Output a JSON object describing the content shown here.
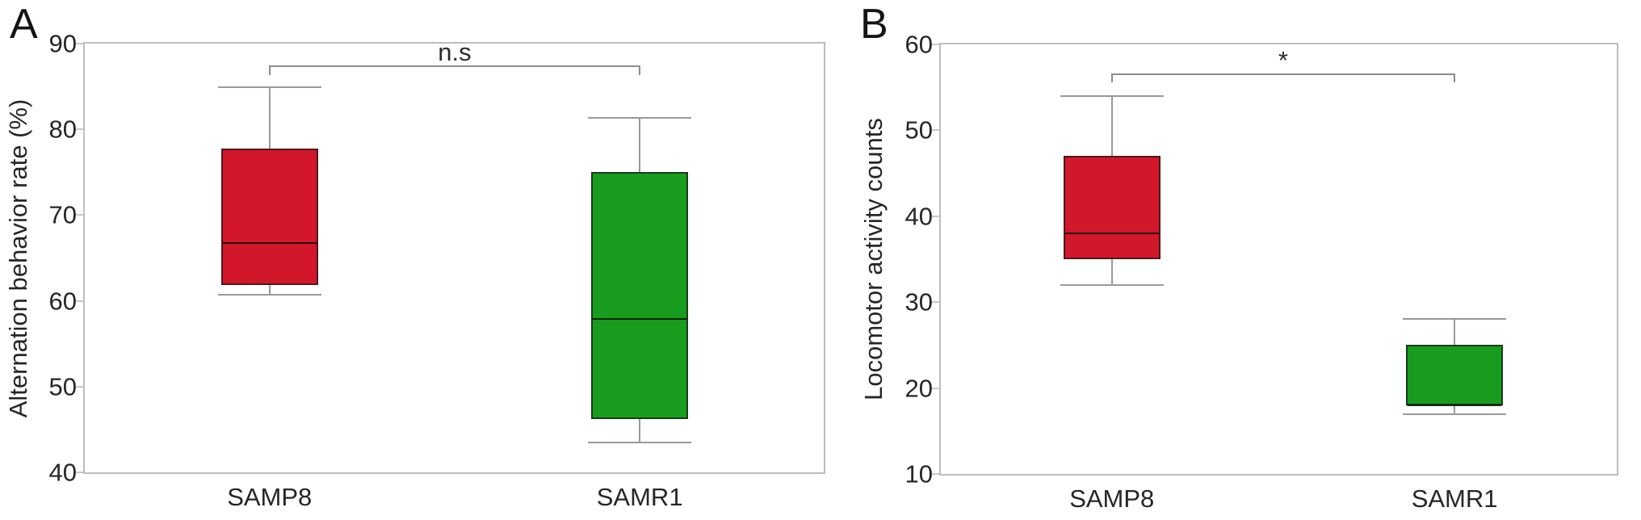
{
  "colors": {
    "samp8_box": "#d2172a",
    "samr1_box": "#189c1e",
    "axis_frame": "#bdbdbd",
    "whisker": "#9a9a9a"
  },
  "chart_data": [
    {
      "type": "boxplot",
      "panel_letter": "A",
      "ylabel": "Alternation behavior rate (%)",
      "ylim": [
        40,
        90
      ],
      "yticks": [
        90,
        80,
        70,
        60,
        50,
        40
      ],
      "categories": [
        "SAMP8",
        "SAMR1"
      ],
      "grid": false,
      "series": [
        {
          "name": "SAMP8",
          "color": "#d2172a",
          "min": 60.7,
          "q1": 61.8,
          "median": 66.7,
          "q3": 77.8,
          "max": 84.9
        },
        {
          "name": "SAMR1",
          "color": "#189c1e",
          "min": 43.5,
          "q1": 46.2,
          "median": 57.9,
          "q3": 75.0,
          "max": 81.3
        }
      ],
      "significance": {
        "label": "n.s",
        "bar_y": 87.5,
        "tick_drop": 1.2
      }
    },
    {
      "type": "boxplot",
      "panel_letter": "B",
      "ylabel": "Locomotor activity counts",
      "ylim": [
        10,
        60
      ],
      "yticks": [
        60,
        50,
        40,
        30,
        20,
        10
      ],
      "categories": [
        "SAMP8",
        "SAMR1"
      ],
      "grid": false,
      "series": [
        {
          "name": "SAMP8",
          "color": "#d2172a",
          "min": 32,
          "q1": 35,
          "median": 38,
          "q3": 47,
          "max": 54
        },
        {
          "name": "SAMR1",
          "color": "#189c1e",
          "min": 17,
          "q1": 18,
          "median": 18,
          "q3": 25,
          "max": 28
        }
      ],
      "significance": {
        "label": "*",
        "bar_y": 56.6,
        "tick_drop": 1.0
      }
    }
  ]
}
